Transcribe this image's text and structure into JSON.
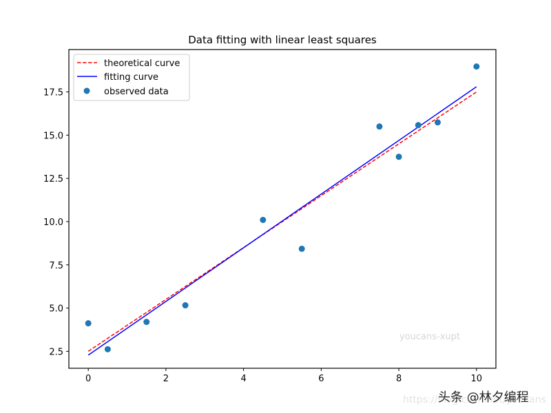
{
  "chart_data": {
    "type": "scatter",
    "title": "Data fitting with linear least squares",
    "xlabel": "",
    "ylabel": "",
    "xlim": [
      -0.5,
      10.5
    ],
    "ylim": [
      1.52,
      19.95
    ],
    "x_ticks": [
      0,
      2,
      4,
      6,
      8,
      10
    ],
    "x_tick_labels": [
      "0",
      "2",
      "4",
      "6",
      "8",
      "10"
    ],
    "y_ticks": [
      2.5,
      5.0,
      7.5,
      10.0,
      12.5,
      15.0,
      17.5
    ],
    "y_tick_labels": [
      "2.5",
      "5.0",
      "7.5",
      "10.0",
      "12.5",
      "15.0",
      "17.5"
    ],
    "grid": false,
    "legend_position": "upper left",
    "series": [
      {
        "name": "theoretical curve",
        "kind": "line",
        "style": "dashed",
        "color": "#ff0000",
        "x": [
          0,
          10
        ],
        "y": [
          2.5,
          17.5
        ]
      },
      {
        "name": "fitting curve",
        "kind": "line",
        "style": "solid",
        "color": "#0000ff",
        "x": [
          0,
          10
        ],
        "y": [
          2.28,
          17.8
        ]
      },
      {
        "name": "observed data",
        "kind": "scatter",
        "color": "#1f77b4",
        "x": [
          0,
          0.5,
          1.5,
          2.5,
          4.5,
          5.5,
          7.5,
          8.0,
          8.5,
          9.0,
          10.0
        ],
        "y": [
          4.12,
          2.62,
          4.2,
          5.16,
          10.1,
          8.43,
          15.5,
          13.75,
          15.58,
          15.74,
          18.97
        ]
      }
    ],
    "annotations": [
      "youcans-xupt"
    ]
  },
  "legend": {
    "items": [
      {
        "label": "theoretical curve"
      },
      {
        "label": "fitting curve"
      },
      {
        "label": "observed data"
      }
    ]
  },
  "watermarks": {
    "inner": "youcans-xupt",
    "url": "https://blog.csdn.net/youcans",
    "brand": "头条 @林夕编程"
  }
}
